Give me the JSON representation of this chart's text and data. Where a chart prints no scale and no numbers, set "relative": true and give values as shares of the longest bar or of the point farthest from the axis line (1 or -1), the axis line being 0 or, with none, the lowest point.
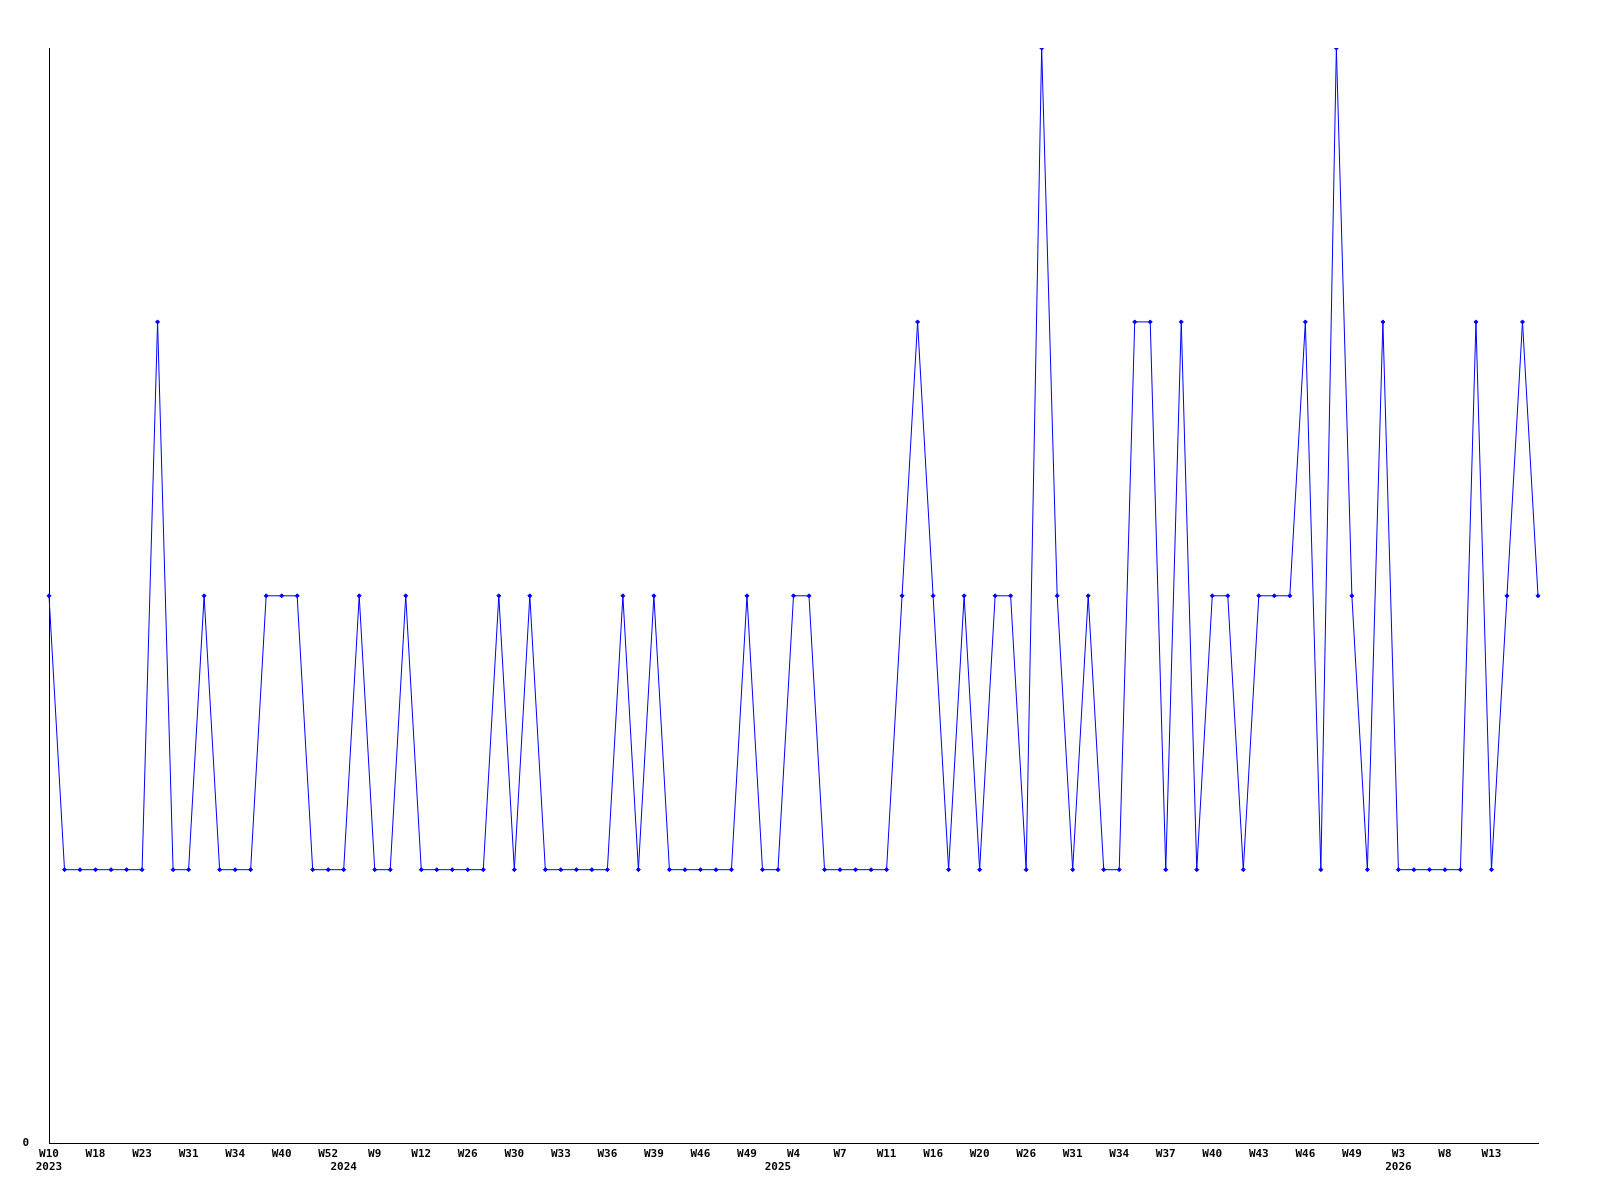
{
  "chart_data": {
    "type": "line",
    "relative": true,
    "annotations": [
      "0"
    ],
    "grid": false,
    "legend": false,
    "marker": "diamond",
    "line_style": "solid",
    "categories": [
      "W10\n2023",
      null,
      null,
      "W18",
      null,
      null,
      "W23",
      null,
      null,
      "W31",
      null,
      null,
      "W34",
      null,
      null,
      "W40",
      null,
      null,
      "W52",
      "\n2024",
      null,
      "W9",
      null,
      null,
      "W12",
      null,
      null,
      "W26",
      null,
      null,
      "W30",
      null,
      null,
      "W33",
      null,
      null,
      "W36",
      null,
      null,
      "W39",
      null,
      null,
      "W46",
      null,
      null,
      "W49",
      null,
      "\n2025",
      "W4",
      null,
      null,
      "W7",
      null,
      null,
      "W11",
      null,
      null,
      "W16",
      null,
      null,
      "W20",
      null,
      null,
      "W26",
      null,
      null,
      "W31",
      null,
      null,
      "W34",
      null,
      null,
      "W37",
      null,
      null,
      "W40",
      null,
      null,
      "W43",
      null,
      null,
      "W46",
      null,
      null,
      "W49",
      null,
      null,
      "W3\n2026",
      null,
      null,
      "W8",
      null,
      null,
      "W13",
      null,
      null,
      null
    ],
    "series": [
      {
        "color": "#0000ff",
        "values": [
          0.5,
          0.25,
          0.25,
          0.25,
          0.25,
          0.25,
          0.25,
          0.75,
          0.25,
          0.25,
          0.5,
          0.25,
          0.25,
          0.25,
          0.5,
          0.5,
          0.5,
          0.25,
          0.25,
          0.25,
          0.5,
          0.25,
          0.25,
          0.5,
          0.25,
          0.25,
          0.25,
          0.25,
          0.25,
          0.5,
          0.25,
          0.5,
          0.25,
          0.25,
          0.25,
          0.25,
          0.25,
          0.5,
          0.25,
          0.5,
          0.25,
          0.25,
          0.25,
          0.25,
          0.25,
          0.5,
          0.25,
          0.25,
          0.5,
          0.5,
          0.25,
          0.25,
          0.25,
          0.25,
          0.25,
          0.5,
          0.75,
          0.5,
          0.25,
          0.5,
          0.25,
          0.5,
          0.5,
          0.25,
          1,
          0.5,
          0.25,
          0.5,
          0.25,
          0.25,
          0.75,
          0.75,
          0.25,
          0.75,
          0.25,
          0.5,
          0.5,
          0.25,
          0.5,
          0.5,
          0.5,
          0.75,
          0.25,
          1,
          0.5,
          0.25,
          0.75,
          0.25,
          0.25,
          0.25,
          0.25,
          0.25,
          0.75,
          0.25,
          0.5,
          0.75,
          0.5
        ]
      }
    ]
  }
}
